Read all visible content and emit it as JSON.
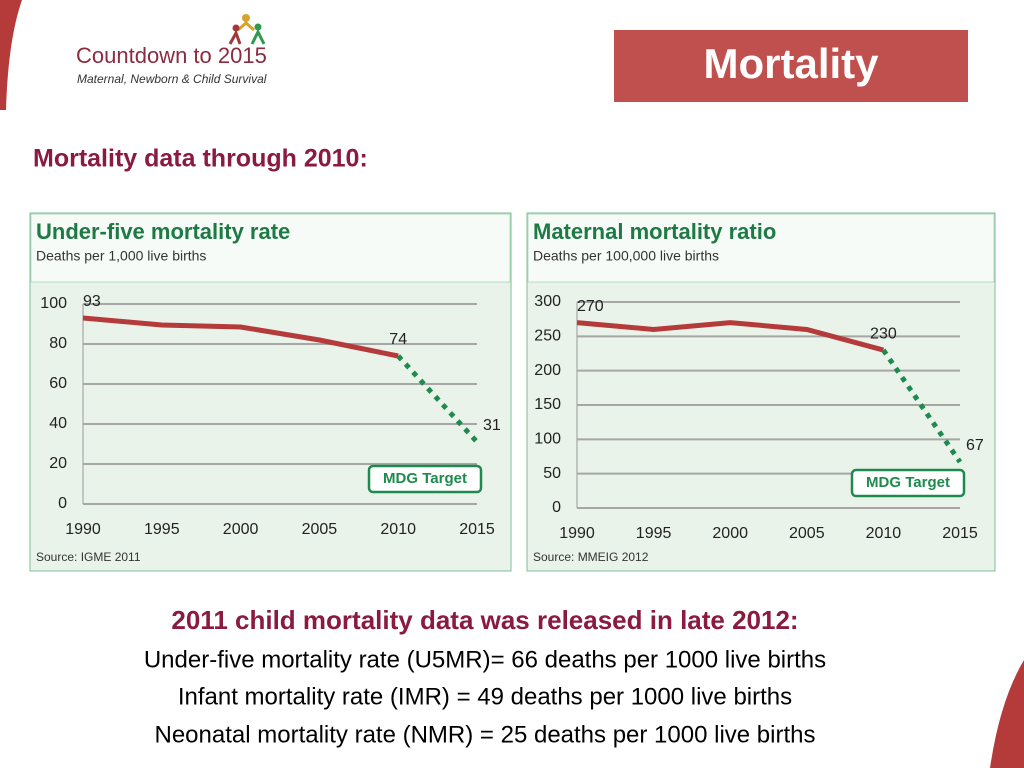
{
  "header": {
    "logo_title": "Countdown to 2015",
    "logo_subtitle": "Maternal, Newborn & Child Survival",
    "title": "Mortality"
  },
  "section_heading": "Mortality data through 2010:",
  "chart_data": [
    {
      "type": "line",
      "title": "Under-five mortality rate",
      "subtitle": "Deaths per 1,000 live births",
      "source": "Source: IGME 2011",
      "x": [
        1990,
        1995,
        2000,
        2005,
        2010,
        2015
      ],
      "series": [
        {
          "color": "#b53a3a",
          "dashed": false,
          "values": [
            93,
            89.5,
            88.5,
            82,
            74,
            null
          ],
          "labeled": [
            0,
            4
          ]
        },
        {
          "name": "MDG Target",
          "color": "#1e8a4e",
          "dashed": true,
          "values": [
            null,
            null,
            null,
            null,
            74,
            31
          ],
          "labeled": [
            5
          ]
        }
      ],
      "xlim": [
        1990,
        2015
      ],
      "xticks": [
        1990,
        1995,
        2000,
        2005,
        2010,
        2015
      ],
      "ylim": [
        0,
        100
      ],
      "yticks": [
        0,
        20,
        40,
        60,
        80,
        100
      ],
      "grid": true
    },
    {
      "type": "line",
      "title": "Maternal mortality ratio",
      "subtitle": "Deaths per 100,000 live births",
      "source": "Source: MMEIG 2012",
      "x": [
        1990,
        1995,
        2000,
        2005,
        2010,
        2015
      ],
      "series": [
        {
          "color": "#b53a3a",
          "dashed": false,
          "values": [
            270,
            260,
            270,
            260,
            230,
            null
          ],
          "labeled": [
            0,
            4
          ]
        },
        {
          "name": "MDG Target",
          "color": "#1e8a4e",
          "dashed": true,
          "values": [
            null,
            null,
            null,
            null,
            230,
            67
          ],
          "labeled": [
            5
          ]
        }
      ],
      "xlim": [
        1990,
        2015
      ],
      "xticks": [
        1990,
        1995,
        2000,
        2005,
        2010,
        2015
      ],
      "ylim": [
        0,
        300
      ],
      "yticks": [
        0,
        50,
        100,
        150,
        200,
        250,
        300
      ],
      "grid": true
    }
  ],
  "release_note": {
    "heading": "2011 child mortality data was released in late 2012:",
    "lines": [
      "Under-five mortality rate (U5MR)= 66 deaths per 1000 live births",
      "Infant mortality rate (IMR) = 49 deaths per 1000 live births",
      "Neonatal mortality rate (NMR) = 25 deaths per 1000 live births"
    ]
  }
}
